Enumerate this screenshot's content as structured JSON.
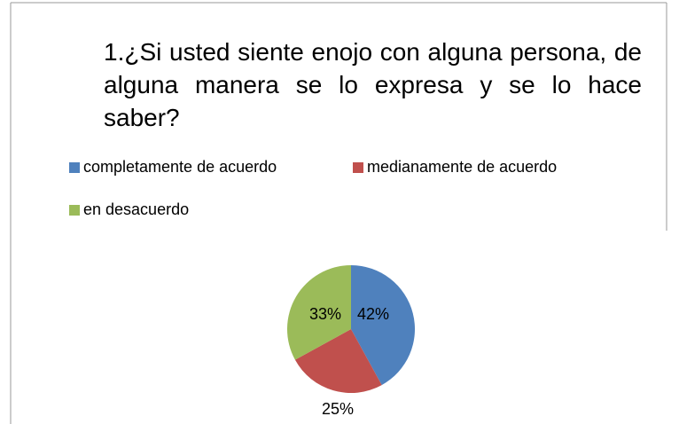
{
  "chart_data": {
    "type": "pie",
    "title": "1.¿Si usted siente enojo con alguna persona, de alguna manera se lo expresa y se lo hace saber?",
    "categories": [
      "completamente de acuerdo",
      "medianamente de acuerdo",
      "en desacuerdo"
    ],
    "values": [
      42,
      25,
      33
    ],
    "value_labels": [
      "42%",
      "25%",
      "33%"
    ],
    "colors": [
      "#4f81bd",
      "#c0504d",
      "#9bbb59"
    ],
    "legend": "top"
  }
}
